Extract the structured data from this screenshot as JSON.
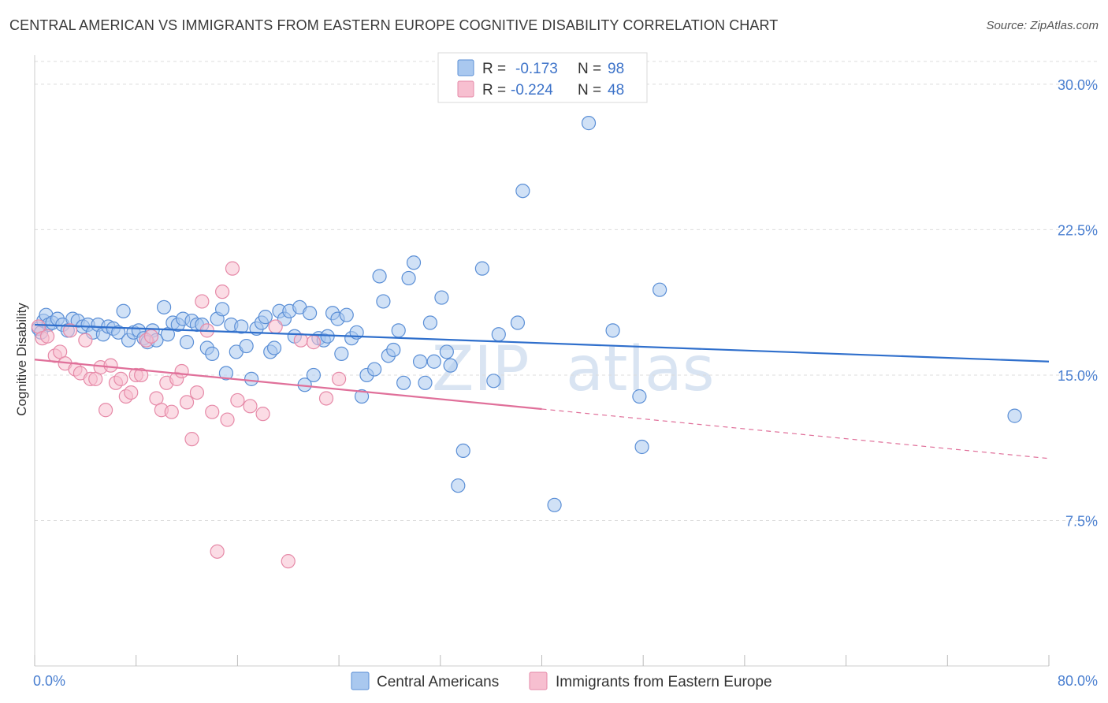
{
  "title": "CENTRAL AMERICAN VS IMMIGRANTS FROM EASTERN EUROPE COGNITIVE DISABILITY CORRELATION CHART",
  "source": "Source: ZipAtlas.com",
  "watermark": {
    "part1": "ZIP",
    "part2": "atlas"
  },
  "colors": {
    "blue_fill": "#a9c8ef",
    "blue_stroke": "#5b8fd6",
    "blue_line": "#2f6fcc",
    "pink_fill": "#f7bfd0",
    "pink_stroke": "#e68aa8",
    "pink_line": "#e0709a",
    "grid": "#dcdcdc",
    "tick_text": "#4a7fd0"
  },
  "legend": {
    "rows": [
      {
        "r_label": "R =",
        "r_value": "-0.173",
        "n_label": "N =",
        "n_value": "98"
      },
      {
        "r_label": "R =",
        "r_value": "-0.224",
        "n_label": "N =",
        "n_value": "48"
      }
    ]
  },
  "chart_data": {
    "type": "scatter",
    "xlabel": "",
    "ylabel": "Cognitive Disability",
    "xlim": [
      0,
      80
    ],
    "ylim": [
      0,
      31.5
    ],
    "x_tick_labels": [
      "0.0%",
      "80.0%"
    ],
    "y_ticks": [
      7.5,
      15.0,
      22.5,
      30.0
    ],
    "y_tick_labels": [
      "7.5%",
      "15.0%",
      "22.5%",
      "30.0%"
    ],
    "grid": "horizontal dashed",
    "legend_placement": "top-center",
    "series": [
      {
        "name": "Central Americans",
        "trend": {
          "x": [
            0,
            80
          ],
          "y": [
            17.6,
            15.7
          ],
          "dashed_from": null
        },
        "points": [
          [
            0.3,
            17.4
          ],
          [
            0.5,
            17.2
          ],
          [
            0.7,
            17.8
          ],
          [
            0.9,
            18.1
          ],
          [
            1.1,
            17.6
          ],
          [
            1.4,
            17.7
          ],
          [
            1.8,
            17.9
          ],
          [
            2.2,
            17.6
          ],
          [
            2.6,
            17.3
          ],
          [
            3.0,
            17.9
          ],
          [
            3.4,
            17.8
          ],
          [
            3.8,
            17.5
          ],
          [
            4.2,
            17.6
          ],
          [
            4.6,
            17.2
          ],
          [
            5.0,
            17.6
          ],
          [
            5.4,
            17.1
          ],
          [
            5.8,
            17.5
          ],
          [
            6.2,
            17.4
          ],
          [
            6.6,
            17.2
          ],
          [
            7.0,
            18.3
          ],
          [
            7.4,
            16.8
          ],
          [
            7.8,
            17.2
          ],
          [
            8.2,
            17.3
          ],
          [
            8.6,
            16.9
          ],
          [
            8.9,
            16.7
          ],
          [
            9.3,
            17.3
          ],
          [
            9.6,
            16.8
          ],
          [
            10.2,
            18.5
          ],
          [
            10.5,
            17.1
          ],
          [
            10.9,
            17.7
          ],
          [
            11.3,
            17.6
          ],
          [
            11.7,
            17.9
          ],
          [
            12.0,
            16.7
          ],
          [
            12.4,
            17.8
          ],
          [
            12.8,
            17.6
          ],
          [
            13.2,
            17.6
          ],
          [
            13.6,
            16.4
          ],
          [
            14.0,
            16.1
          ],
          [
            14.4,
            17.9
          ],
          [
            14.8,
            18.4
          ],
          [
            15.1,
            15.1
          ],
          [
            15.5,
            17.6
          ],
          [
            15.9,
            16.2
          ],
          [
            16.3,
            17.5
          ],
          [
            16.7,
            16.5
          ],
          [
            17.1,
            14.8
          ],
          [
            17.5,
            17.4
          ],
          [
            17.9,
            17.7
          ],
          [
            18.2,
            18.0
          ],
          [
            18.6,
            16.2
          ],
          [
            18.9,
            16.4
          ],
          [
            19.3,
            18.3
          ],
          [
            19.7,
            17.9
          ],
          [
            20.1,
            18.3
          ],
          [
            20.5,
            17.0
          ],
          [
            20.9,
            18.5
          ],
          [
            21.3,
            14.5
          ],
          [
            21.7,
            18.2
          ],
          [
            22.0,
            15.0
          ],
          [
            22.4,
            16.9
          ],
          [
            22.8,
            16.8
          ],
          [
            23.1,
            17.0
          ],
          [
            23.5,
            18.2
          ],
          [
            23.9,
            17.9
          ],
          [
            24.2,
            16.1
          ],
          [
            24.6,
            18.1
          ],
          [
            25.0,
            16.9
          ],
          [
            25.4,
            17.2
          ],
          [
            25.8,
            13.9
          ],
          [
            26.2,
            15.0
          ],
          [
            26.8,
            15.3
          ],
          [
            27.2,
            20.1
          ],
          [
            27.5,
            18.8
          ],
          [
            27.9,
            16.0
          ],
          [
            28.3,
            16.3
          ],
          [
            28.7,
            17.3
          ],
          [
            29.1,
            14.6
          ],
          [
            29.5,
            20.0
          ],
          [
            29.9,
            20.8
          ],
          [
            30.4,
            15.7
          ],
          [
            30.8,
            14.6
          ],
          [
            31.2,
            17.7
          ],
          [
            31.5,
            15.7
          ],
          [
            32.1,
            19.0
          ],
          [
            32.5,
            16.2
          ],
          [
            32.8,
            15.5
          ],
          [
            33.4,
            9.3
          ],
          [
            33.8,
            11.1
          ],
          [
            35.3,
            20.5
          ],
          [
            36.2,
            14.7
          ],
          [
            36.6,
            17.1
          ],
          [
            38.1,
            17.7
          ],
          [
            38.5,
            24.5
          ],
          [
            41.0,
            8.3
          ],
          [
            43.7,
            28.0
          ],
          [
            45.6,
            17.3
          ],
          [
            47.7,
            13.9
          ],
          [
            47.9,
            11.3
          ],
          [
            49.3,
            19.4
          ],
          [
            77.3,
            12.9
          ]
        ]
      },
      {
        "name": "Immigrants from Eastern Europe",
        "trend": {
          "x": [
            0,
            80
          ],
          "y": [
            15.8,
            10.7
          ],
          "dashed_from": 40
        },
        "points": [
          [
            0.3,
            17.5
          ],
          [
            0.6,
            16.9
          ],
          [
            1.0,
            17.0
          ],
          [
            1.6,
            16.0
          ],
          [
            2.0,
            16.2
          ],
          [
            2.4,
            15.6
          ],
          [
            2.8,
            17.3
          ],
          [
            3.2,
            15.3
          ],
          [
            3.6,
            15.1
          ],
          [
            4.0,
            16.8
          ],
          [
            4.4,
            14.8
          ],
          [
            4.8,
            14.8
          ],
          [
            5.2,
            15.4
          ],
          [
            5.6,
            13.2
          ],
          [
            6.0,
            15.5
          ],
          [
            6.4,
            14.6
          ],
          [
            6.8,
            14.8
          ],
          [
            7.2,
            13.9
          ],
          [
            7.6,
            14.1
          ],
          [
            8.0,
            15.0
          ],
          [
            8.4,
            15.0
          ],
          [
            8.8,
            16.8
          ],
          [
            9.2,
            17.0
          ],
          [
            9.6,
            13.8
          ],
          [
            10.0,
            13.2
          ],
          [
            10.4,
            14.6
          ],
          [
            10.8,
            13.1
          ],
          [
            11.2,
            14.8
          ],
          [
            11.6,
            15.2
          ],
          [
            12.0,
            13.6
          ],
          [
            12.4,
            11.7
          ],
          [
            12.8,
            14.1
          ],
          [
            13.2,
            18.8
          ],
          [
            13.6,
            17.3
          ],
          [
            14.0,
            13.1
          ],
          [
            14.4,
            5.9
          ],
          [
            14.8,
            19.3
          ],
          [
            15.2,
            12.7
          ],
          [
            15.6,
            20.5
          ],
          [
            16.0,
            13.7
          ],
          [
            17.0,
            13.4
          ],
          [
            18.0,
            13.0
          ],
          [
            19.0,
            17.5
          ],
          [
            20.0,
            5.4
          ],
          [
            21.0,
            16.8
          ],
          [
            22.0,
            16.7
          ],
          [
            23.0,
            13.8
          ],
          [
            24.0,
            14.8
          ]
        ]
      }
    ]
  },
  "bottom_legend": [
    {
      "label": "Central Americans"
    },
    {
      "label": "Immigrants from Eastern Europe"
    }
  ]
}
